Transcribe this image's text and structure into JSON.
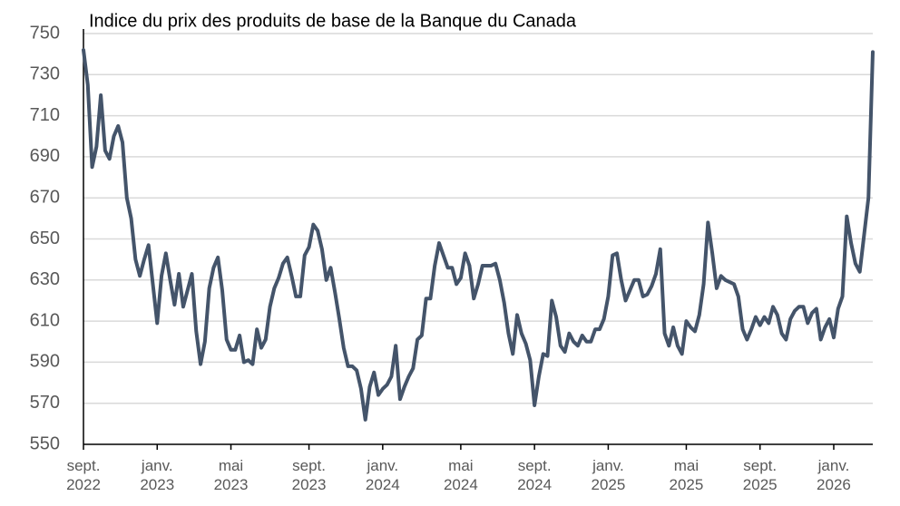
{
  "chart_data": {
    "type": "line",
    "title": "Indice du prix des produits de base de la Banque du Canada",
    "categories": [
      "sept.\n2022",
      null,
      null,
      null,
      null,
      null,
      null,
      null,
      null,
      null,
      null,
      null,
      null,
      null,
      null,
      null,
      null,
      "janv.\n2023",
      null,
      null,
      null,
      null,
      null,
      null,
      null,
      null,
      null,
      null,
      null,
      null,
      null,
      null,
      null,
      null,
      "mai\n2023",
      null,
      null,
      null,
      null,
      null,
      null,
      null,
      null,
      null,
      null,
      null,
      null,
      null,
      null,
      null,
      null,
      null,
      "sept.\n2023",
      null,
      null,
      null,
      null,
      null,
      null,
      null,
      null,
      null,
      null,
      null,
      null,
      null,
      null,
      null,
      null,
      "janv.\n2024",
      null,
      null,
      null,
      null,
      null,
      null,
      null,
      null,
      null,
      null,
      null,
      null,
      null,
      null,
      null,
      null,
      null,
      "mai\n2024",
      null,
      null,
      null,
      null,
      null,
      null,
      null,
      null,
      null,
      null,
      null,
      null,
      null,
      null,
      null,
      null,
      "sept.\n2024",
      null,
      null,
      null,
      null,
      null,
      null,
      null,
      null,
      null,
      null,
      null,
      null,
      null,
      null,
      null,
      null,
      "janv.\n2025",
      null,
      null,
      null,
      null,
      null,
      null,
      null,
      null,
      null,
      null,
      null,
      null,
      null,
      null,
      null,
      null,
      null,
      "mai\n2025",
      null,
      null,
      null,
      null,
      null,
      null,
      null,
      null,
      null,
      null,
      null,
      null,
      null,
      null,
      null,
      null,
      "sept.\n2025",
      null,
      null,
      null,
      null,
      null,
      null,
      null,
      null,
      null,
      null,
      null,
      null,
      null,
      null,
      null,
      null,
      "janv.\n2026",
      null,
      null,
      null,
      null,
      null,
      null,
      null,
      null,
      null
    ],
    "series": [
      {
        "name": "Indice du prix des produits de base",
        "color": "#44546a",
        "values": [
          742,
          725,
          685,
          695,
          720,
          693,
          689,
          700,
          705,
          697,
          670,
          660,
          640,
          632,
          640,
          647,
          628,
          609,
          632,
          643,
          630,
          618,
          633,
          617,
          625,
          633,
          605,
          589,
          600,
          626,
          636,
          641,
          625,
          601,
          596,
          596,
          603,
          590,
          591,
          589,
          606,
          597,
          601,
          617,
          626,
          631,
          638,
          641,
          632,
          622,
          622,
          642,
          646,
          657,
          654,
          645,
          630,
          636,
          624,
          611,
          597,
          588,
          588,
          586,
          577,
          562,
          578,
          585,
          574,
          577,
          579,
          583,
          598,
          572,
          578,
          583,
          587,
          601,
          603,
          621,
          621,
          637,
          648,
          642,
          636,
          636,
          628,
          631,
          643,
          637,
          621,
          628,
          637,
          637,
          637,
          638,
          630,
          619,
          604,
          594,
          613,
          604,
          599,
          591,
          569,
          583,
          594,
          593,
          620,
          612,
          598,
          595,
          604,
          600,
          598,
          603,
          600,
          600,
          606,
          606,
          611,
          622,
          642,
          643,
          630,
          620,
          625,
          630,
          630,
          622,
          623,
          627,
          633,
          645,
          604,
          598,
          607,
          598,
          594,
          610,
          607,
          605,
          613,
          628,
          658,
          643,
          626,
          632,
          630,
          629,
          628,
          622,
          606,
          601,
          606,
          612,
          608,
          612,
          609,
          617,
          613,
          604,
          601,
          611,
          615,
          617,
          617,
          609,
          614,
          616,
          601,
          607,
          611,
          602,
          616,
          622,
          661,
          648,
          638,
          634,
          652,
          670,
          741
        ]
      }
    ],
    "ylim": [
      550,
      750
    ],
    "yticks": [
      550,
      570,
      590,
      610,
      630,
      650,
      670,
      690,
      710,
      730,
      750
    ],
    "grid": true
  }
}
